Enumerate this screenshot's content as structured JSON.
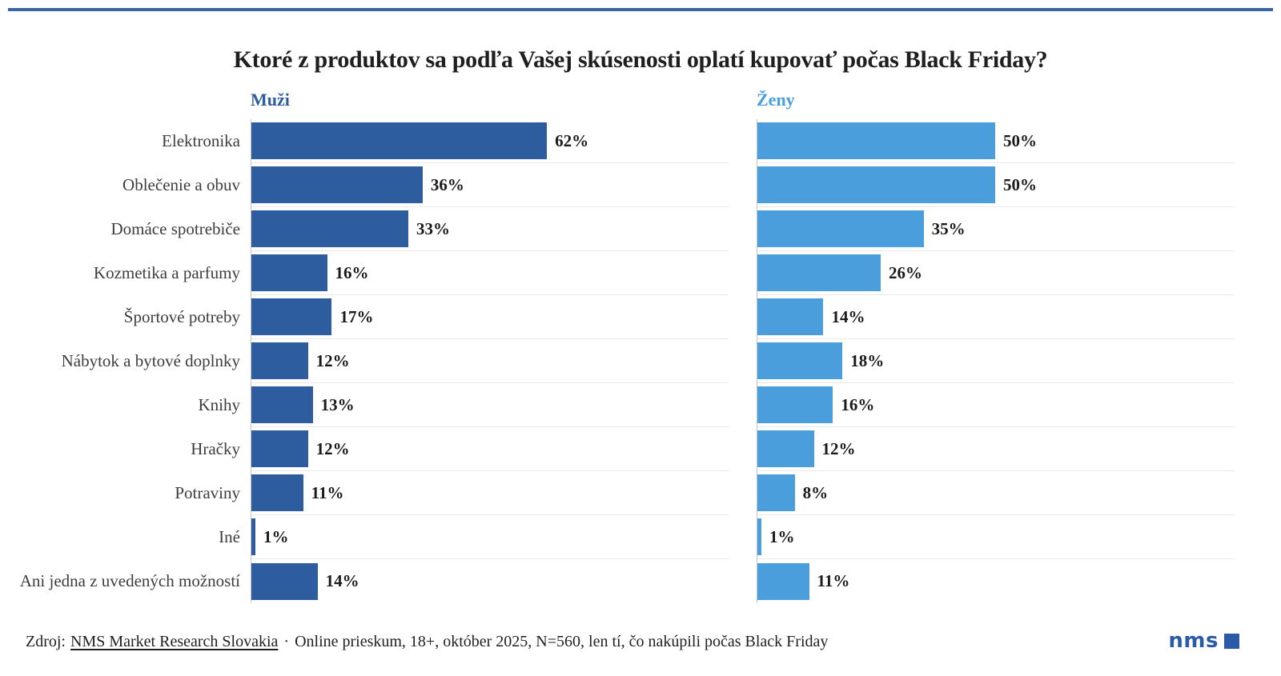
{
  "page": {
    "title": "Ktoré z produktov sa podľa Vašej skúsenosti oplatí kupovať počas Black Friday?"
  },
  "chart_data": {
    "type": "bar",
    "orientation": "horizontal",
    "value_suffix": "%",
    "xlim": [
      0,
      100
    ],
    "grid": "light row separator lines only, no x-axis ticks or labels",
    "legend_position": "colored series name above each panel",
    "categories": [
      "Elektronika",
      "Oblečenie a obuv",
      "Domáce spotrebiče",
      "Kozmetika a parfumy",
      "Športové potreby",
      "Nábytok a bytové doplnky",
      "Knihy",
      "Hračky",
      "Potraviny",
      "Iné",
      "Ani jedna z uvedených možností"
    ],
    "series": [
      {
        "name": "Muži",
        "color": "#2d5d9e",
        "values": [
          62,
          36,
          33,
          16,
          17,
          12,
          13,
          12,
          11,
          1,
          14
        ]
      },
      {
        "name": "Ženy",
        "color": "#4a9edc",
        "values": [
          50,
          50,
          35,
          26,
          14,
          18,
          16,
          12,
          8,
          1,
          11
        ]
      }
    ]
  },
  "footer": {
    "source_prefix": "Zdroj:",
    "source_link": "NMS Market Research Slovakia",
    "separator": "·",
    "note": "Online prieskum, 18+, október 2025, N=560, len tí, čo nakúpili počas Black Friday"
  },
  "logo": {
    "text": "nms",
    "color": "#2b5ba6"
  },
  "colors": {
    "top_rule": "#3a679f",
    "gridline": "#e9e9e9",
    "axis_line": "#c4c4c4",
    "title_text": "#1f1f1f",
    "category_text": "#3d3d3d",
    "value_text": "#1a1a1a"
  }
}
